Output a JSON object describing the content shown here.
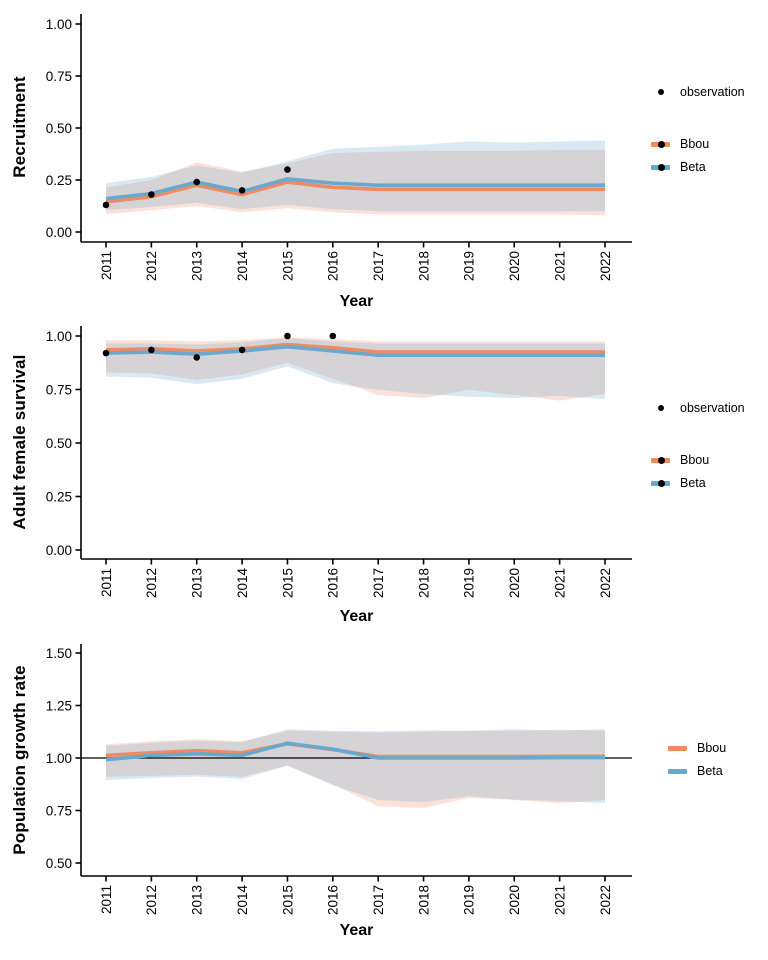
{
  "figure_title": "",
  "colors": {
    "bbou": "#EF8A62",
    "beta": "#67A9CF",
    "observation": "#000000",
    "axis": "#000000",
    "ribbon_opacity": 0.25
  },
  "chart_data": [
    {
      "type": "line",
      "title": "",
      "ylabel": "Recruitment",
      "xlabel": "Year",
      "x": [
        2011,
        2012,
        2013,
        2014,
        2015,
        2016,
        2017,
        2018,
        2019,
        2020,
        2021,
        2022
      ],
      "xtick_labels": [
        "2011",
        "2012",
        "2013",
        "2014",
        "2015",
        "2016",
        "2017",
        "2018",
        "2019",
        "2020",
        "2021",
        "2022"
      ],
      "ylim": [
        0.0,
        1.0
      ],
      "yticks": [
        0.0,
        0.25,
        0.5,
        0.75,
        1.0
      ],
      "ytick_labels": [
        "0.00",
        "0.25",
        "0.50",
        "0.75",
        "1.00"
      ],
      "grid": false,
      "legend_position": "right",
      "legend": {
        "observation_label": "observation"
      },
      "observations": {
        "x": [
          2011,
          2012,
          2013,
          2014,
          2015
        ],
        "y": [
          0.13,
          0.18,
          0.24,
          0.2,
          0.3
        ]
      },
      "series": [
        {
          "name": "Bbou",
          "color": "#EF8A62",
          "mean": [
            0.145,
            0.17,
            0.225,
            0.18,
            0.24,
            0.215,
            0.205,
            0.205,
            0.205,
            0.205,
            0.205,
            0.205
          ],
          "lower": [
            0.085,
            0.105,
            0.125,
            0.095,
            0.115,
            0.095,
            0.085,
            0.085,
            0.085,
            0.085,
            0.085,
            0.08
          ],
          "upper": [
            0.215,
            0.25,
            0.335,
            0.29,
            0.33,
            0.38,
            0.385,
            0.39,
            0.39,
            0.39,
            0.395,
            0.395
          ]
        },
        {
          "name": "Beta",
          "color": "#67A9CF",
          "mean": [
            0.16,
            0.185,
            0.24,
            0.195,
            0.255,
            0.235,
            0.225,
            0.225,
            0.225,
            0.225,
            0.225,
            0.225
          ],
          "lower": [
            0.105,
            0.12,
            0.14,
            0.11,
            0.13,
            0.11,
            0.1,
            0.1,
            0.1,
            0.1,
            0.1,
            0.1
          ],
          "upper": [
            0.235,
            0.265,
            0.32,
            0.285,
            0.34,
            0.4,
            0.41,
            0.42,
            0.435,
            0.43,
            0.435,
            0.44
          ]
        }
      ]
    },
    {
      "type": "line",
      "title": "",
      "ylabel": "Adult female survival",
      "xlabel": "Year",
      "x": [
        2011,
        2012,
        2013,
        2014,
        2015,
        2016,
        2017,
        2018,
        2019,
        2020,
        2021,
        2022
      ],
      "xtick_labels": [
        "2011",
        "2012",
        "2013",
        "2014",
        "2015",
        "2016",
        "2017",
        "2018",
        "2019",
        "2020",
        "2021",
        "2022"
      ],
      "ylim": [
        0.0,
        1.0
      ],
      "yticks": [
        0.0,
        0.25,
        0.5,
        0.75,
        1.0
      ],
      "ytick_labels": [
        "0.00",
        "0.25",
        "0.50",
        "0.75",
        "1.00"
      ],
      "grid": false,
      "legend_position": "right",
      "legend": {
        "observation_label": "observation"
      },
      "observations": {
        "x": [
          2011,
          2012,
          2013,
          2014,
          2015,
          2016
        ],
        "y": [
          0.92,
          0.935,
          0.9,
          0.935,
          1.0,
          1.0
        ]
      },
      "series": [
        {
          "name": "Bbou",
          "color": "#EF8A62",
          "mean": [
            0.935,
            0.94,
            0.93,
            0.94,
            0.96,
            0.945,
            0.925,
            0.925,
            0.925,
            0.925,
            0.925,
            0.925
          ],
          "lower": [
            0.83,
            0.825,
            0.795,
            0.82,
            0.875,
            0.8,
            0.724,
            0.71,
            0.748,
            0.724,
            0.698,
            0.729
          ],
          "upper": [
            0.98,
            0.98,
            0.975,
            0.98,
            0.995,
            0.985,
            0.975,
            0.975,
            0.975,
            0.975,
            0.975,
            0.975
          ]
        },
        {
          "name": "Beta",
          "color": "#67A9CF",
          "mean": [
            0.92,
            0.925,
            0.915,
            0.93,
            0.95,
            0.93,
            0.91,
            0.91,
            0.91,
            0.91,
            0.91,
            0.91
          ],
          "lower": [
            0.81,
            0.805,
            0.775,
            0.8,
            0.858,
            0.78,
            0.748,
            0.729,
            0.716,
            0.71,
            0.72,
            0.705
          ],
          "upper": [
            0.965,
            0.965,
            0.96,
            0.97,
            0.99,
            0.975,
            0.965,
            0.965,
            0.965,
            0.965,
            0.965,
            0.965
          ]
        }
      ]
    },
    {
      "type": "line",
      "title": "",
      "ylabel": "Population growth rate",
      "xlabel": "Year",
      "x": [
        2011,
        2012,
        2013,
        2014,
        2015,
        2016,
        2017,
        2018,
        2019,
        2020,
        2021,
        2022
      ],
      "xtick_labels": [
        "2011",
        "2012",
        "2013",
        "2014",
        "2015",
        "2016",
        "2017",
        "2018",
        "2019",
        "2020",
        "2021",
        "2022"
      ],
      "ylim": [
        0.5,
        1.5
      ],
      "yticks": [
        0.5,
        0.75,
        1.0,
        1.25,
        1.5
      ],
      "ytick_labels": [
        "0.50",
        "0.75",
        "1.00",
        "1.25",
        "1.50"
      ],
      "grid": false,
      "legend_position": "right",
      "reference_line": 1.0,
      "legend": {},
      "observations": null,
      "series": [
        {
          "name": "Bbou",
          "color": "#EF8A62",
          "mean": [
            1.012,
            1.025,
            1.035,
            1.025,
            1.068,
            1.04,
            1.007,
            1.007,
            1.007,
            1.007,
            1.008,
            1.008
          ],
          "lower": [
            0.91,
            0.915,
            0.92,
            0.91,
            0.965,
            0.875,
            0.77,
            0.762,
            0.81,
            0.8,
            0.785,
            0.8
          ],
          "upper": [
            1.065,
            1.08,
            1.09,
            1.08,
            1.13,
            1.125,
            1.12,
            1.125,
            1.13,
            1.128,
            1.135,
            1.13
          ]
        },
        {
          "name": "Beta",
          "color": "#67A9CF",
          "mean": [
            0.992,
            1.012,
            1.02,
            1.013,
            1.07,
            1.042,
            1.0,
            1.0,
            1.0,
            1.0,
            1.002,
            1.002
          ],
          "lower": [
            0.895,
            0.905,
            0.912,
            0.9,
            0.963,
            0.87,
            0.8,
            0.79,
            0.818,
            0.802,
            0.795,
            0.785
          ],
          "upper": [
            1.058,
            1.072,
            1.082,
            1.075,
            1.137,
            1.13,
            1.127,
            1.132,
            1.13,
            1.137,
            1.13,
            1.137
          ]
        }
      ]
    }
  ]
}
